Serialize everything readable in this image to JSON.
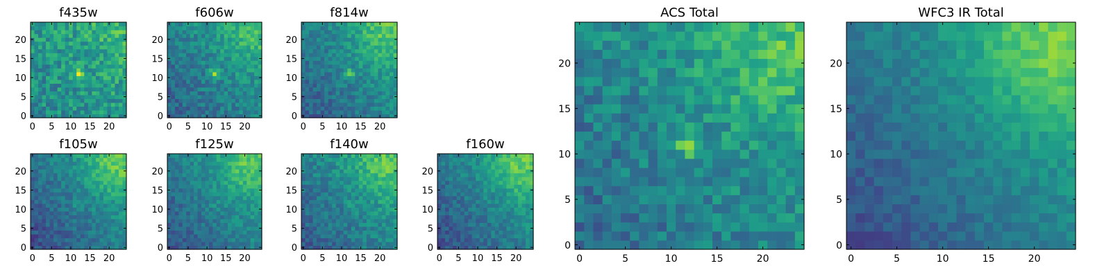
{
  "figure": {
    "colormap": "viridis",
    "colormap_stops": [
      "#440154",
      "#482878",
      "#3e4989",
      "#31688e",
      "#26828e",
      "#1f9e89",
      "#35b779",
      "#6ece58",
      "#b5de2b",
      "#fde725"
    ]
  },
  "chart_data": [
    {
      "type": "heatmap",
      "title": "f435w",
      "grid": [
        25,
        25
      ],
      "xlim": [
        0,
        24
      ],
      "ylim": [
        0,
        24
      ],
      "xticks": [
        "0",
        "5",
        "10",
        "15",
        "20"
      ],
      "yticks": [
        "0",
        "5",
        "10",
        "15",
        "20"
      ],
      "background": 0.62,
      "gradient": 0.25,
      "noise": 0.16,
      "bright_spot": {
        "x": 12,
        "y": 11,
        "amplitude": 0.35
      },
      "seed": 11
    },
    {
      "type": "heatmap",
      "title": "f606w",
      "grid": [
        25,
        25
      ],
      "xlim": [
        0,
        24
      ],
      "ylim": [
        0,
        24
      ],
      "xticks": [
        "0",
        "5",
        "10",
        "15",
        "20"
      ],
      "yticks": [
        "0",
        "5",
        "10",
        "15",
        "20"
      ],
      "background": 0.42,
      "gradient": 0.5,
      "noise": 0.12,
      "bright_spot": {
        "x": 12,
        "y": 11,
        "amplitude": 0.4
      },
      "seed": 23
    },
    {
      "type": "heatmap",
      "title": "f814w",
      "grid": [
        25,
        25
      ],
      "xlim": [
        0,
        24
      ],
      "ylim": [
        0,
        24
      ],
      "xticks": [
        "0",
        "5",
        "10",
        "15",
        "20"
      ],
      "yticks": [
        "0",
        "5",
        "10",
        "15",
        "20"
      ],
      "background": 0.38,
      "gradient": 0.6,
      "noise": 0.11,
      "bright_spot": {
        "x": 12,
        "y": 11,
        "amplitude": 0.3
      },
      "seed": 37
    },
    {
      "type": "heatmap",
      "title": "f105w",
      "grid": [
        25,
        25
      ],
      "xlim": [
        0,
        24
      ],
      "ylim": [
        0,
        24
      ],
      "xticks": [
        "0",
        "5",
        "10",
        "15",
        "20"
      ],
      "yticks": [
        "0",
        "5",
        "10",
        "15",
        "20"
      ],
      "background": 0.3,
      "gradient": 0.7,
      "noise": 0.1,
      "bright_spot": {
        "x": 12,
        "y": 11,
        "amplitude": 0.1
      },
      "seed": 41
    },
    {
      "type": "heatmap",
      "title": "f125w",
      "grid": [
        25,
        25
      ],
      "xlim": [
        0,
        24
      ],
      "ylim": [
        0,
        24
      ],
      "xticks": [
        "0",
        "5",
        "10",
        "15",
        "20"
      ],
      "yticks": [
        "0",
        "5",
        "10",
        "15",
        "20"
      ],
      "background": 0.35,
      "gradient": 0.65,
      "noise": 0.1,
      "bright_spot": {
        "x": 12,
        "y": 11,
        "amplitude": 0.05
      },
      "seed": 53
    },
    {
      "type": "heatmap",
      "title": "f140w",
      "grid": [
        25,
        25
      ],
      "xlim": [
        0,
        24
      ],
      "ylim": [
        0,
        24
      ],
      "xticks": [
        "0",
        "5",
        "10",
        "15",
        "20"
      ],
      "yticks": [
        "0",
        "5",
        "10",
        "15",
        "20"
      ],
      "background": 0.38,
      "gradient": 0.62,
      "noise": 0.11,
      "bright_spot": {
        "x": 12,
        "y": 11,
        "amplitude": 0.05
      },
      "seed": 67
    },
    {
      "type": "heatmap",
      "title": "f160w",
      "grid": [
        25,
        25
      ],
      "xlim": [
        0,
        24
      ],
      "ylim": [
        0,
        24
      ],
      "xticks": [
        "0",
        "5",
        "10",
        "15",
        "20"
      ],
      "yticks": [
        "0",
        "5",
        "10",
        "15",
        "20"
      ],
      "background": 0.32,
      "gradient": 0.7,
      "noise": 0.1,
      "bright_spot": {
        "x": 12,
        "y": 11,
        "amplitude": 0.0
      },
      "seed": 79
    },
    {
      "type": "heatmap",
      "title": "ACS Total",
      "grid": [
        25,
        25
      ],
      "xlim": [
        0,
        24
      ],
      "ylim": [
        0,
        24
      ],
      "xticks": [
        "0",
        "5",
        "10",
        "15",
        "20"
      ],
      "yticks": [
        "0",
        "5",
        "10",
        "15",
        "20"
      ],
      "background": 0.45,
      "gradient": 0.5,
      "noise": 0.13,
      "bright_spot": {
        "x": 12,
        "y": 11,
        "amplitude": 0.45
      },
      "seed": 83
    },
    {
      "type": "heatmap",
      "title": "WFC3 IR Total",
      "grid": [
        25,
        25
      ],
      "xlim": [
        0,
        24
      ],
      "ylim": [
        0,
        24
      ],
      "xticks": [
        "0",
        "5",
        "10",
        "15",
        "20"
      ],
      "yticks": [
        "0",
        "5",
        "10",
        "15",
        "20"
      ],
      "background": 0.3,
      "gradient": 0.75,
      "noise": 0.07,
      "bright_spot": {
        "x": 12,
        "y": 11,
        "amplitude": 0.0
      },
      "seed": 97
    }
  ]
}
